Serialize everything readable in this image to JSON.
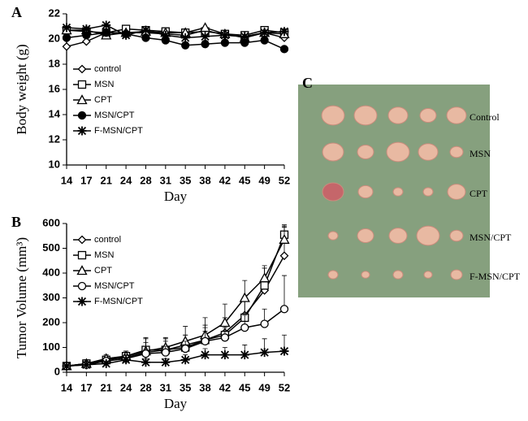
{
  "chart_data": [
    {
      "type": "line",
      "panel": "A",
      "x_label": "Day",
      "y_label": "Body weight (g)",
      "categories": [
        "14",
        "17",
        "21",
        "24",
        "28",
        "31",
        "35",
        "38",
        "42",
        "45",
        "49",
        "52"
      ],
      "ylim": [
        10,
        22
      ],
      "yticks": [
        10,
        12,
        14,
        16,
        18,
        20,
        22
      ],
      "legend": "center left",
      "series": [
        {
          "name": "control",
          "color": "#000000",
          "marker": "diamond",
          "values": [
            19.4,
            19.8,
            20.5,
            20.5,
            20.5,
            20.4,
            20.3,
            20.7,
            20.3,
            20.2,
            20.5,
            20.1
          ]
        },
        {
          "name": "MSN",
          "color": "#000000",
          "marker": "square",
          "values": [
            20.7,
            20.6,
            20.5,
            20.8,
            20.7,
            20.6,
            20.5,
            20.6,
            20.4,
            20.3,
            20.7,
            20.5
          ]
        },
        {
          "name": "CPT",
          "color": "#000000",
          "marker": "triangle",
          "values": [
            20.7,
            20.7,
            20.3,
            20.5,
            20.6,
            20.5,
            20.5,
            20.9,
            20.4,
            20.1,
            20.5,
            20.4
          ]
        },
        {
          "name": "MSN/CPT",
          "color": "#000000",
          "marker": "dot",
          "values": [
            20.1,
            20.3,
            20.5,
            20.4,
            20.1,
            19.9,
            19.5,
            19.6,
            19.7,
            19.7,
            19.9,
            19.2
          ]
        },
        {
          "name": "F-MSN/CPT",
          "color": "#000000",
          "marker": "star",
          "values": [
            20.9,
            20.8,
            21.1,
            20.3,
            20.7,
            20.3,
            20.1,
            20.2,
            20.3,
            20.2,
            20.5,
            20.6
          ]
        }
      ]
    },
    {
      "type": "line",
      "panel": "B",
      "x_label": "Day",
      "y_label": "Tumor Volume (mm³)",
      "categories": [
        "14",
        "17",
        "21",
        "24",
        "28",
        "31",
        "35",
        "38",
        "42",
        "45",
        "49",
        "52"
      ],
      "ylim": [
        0,
        600
      ],
      "yticks": [
        0,
        100,
        200,
        300,
        400,
        500,
        600
      ],
      "legend": "upper left",
      "series": [
        {
          "name": "control",
          "color": "#000000",
          "marker": "diamond",
          "values": [
            25,
            35,
            50,
            60,
            80,
            90,
            110,
            130,
            160,
            230,
            330,
            470
          ],
          "errors": [
            5,
            15,
            15,
            20,
            40,
            35,
            40,
            50,
            60,
            70,
            90,
            120
          ]
        },
        {
          "name": "MSN",
          "color": "#000000",
          "marker": "square",
          "values": [
            25,
            35,
            50,
            65,
            90,
            90,
            100,
            130,
            150,
            220,
            350,
            555
          ],
          "errors": [
            5,
            15,
            15,
            20,
            50,
            45,
            50,
            60,
            70,
            80,
            70,
            40
          ]
        },
        {
          "name": "CPT",
          "color": "#000000",
          "marker": "triangle",
          "values": [
            25,
            35,
            55,
            65,
            85,
            100,
            125,
            150,
            200,
            300,
            380,
            535
          ],
          "errors": [
            5,
            15,
            15,
            20,
            50,
            40,
            60,
            70,
            75,
            70,
            50,
            50
          ]
        },
        {
          "name": "MSN/CPT",
          "color": "#000000",
          "marker": "circle",
          "values": [
            25,
            30,
            45,
            55,
            75,
            80,
            95,
            125,
            140,
            180,
            195,
            255
          ],
          "errors": [
            5,
            10,
            10,
            15,
            30,
            25,
            30,
            40,
            40,
            50,
            60,
            135
          ]
        },
        {
          "name": "F-MSN/CPT",
          "color": "#000000",
          "marker": "star",
          "values": [
            25,
            30,
            35,
            50,
            40,
            40,
            50,
            70,
            70,
            70,
            80,
            85
          ],
          "errors": [
            5,
            10,
            10,
            10,
            15,
            15,
            20,
            25,
            30,
            40,
            55,
            65
          ]
        }
      ]
    }
  ],
  "photo": {
    "label": "C",
    "rows": [
      "Control",
      "MSN",
      "CPT",
      "MSN/CPT",
      "F-MSN/CPT"
    ]
  }
}
